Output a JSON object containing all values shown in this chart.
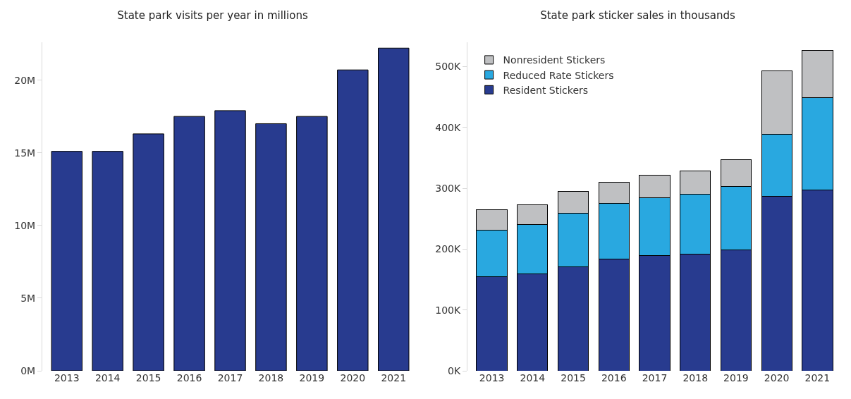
{
  "chart_data": [
    {
      "type": "bar",
      "title": "State park visits per year in millions",
      "categories": [
        "2013",
        "2014",
        "2015",
        "2016",
        "2017",
        "2018",
        "2019",
        "2020",
        "2021"
      ],
      "values": [
        15.1,
        15.1,
        16.3,
        17.5,
        17.9,
        17.0,
        17.5,
        20.7,
        22.2
      ],
      "color": "#283b8f",
      "ylim": [
        0,
        22.6
      ],
      "yticks": [
        {
          "value": 0,
          "label": "0M"
        },
        {
          "value": 5,
          "label": "5M"
        },
        {
          "value": 10,
          "label": "10M"
        },
        {
          "value": 15,
          "label": "15M"
        },
        {
          "value": 20,
          "label": "20M"
        }
      ],
      "grid": false,
      "legend": false
    },
    {
      "type": "bar",
      "title": "State park sticker sales in thousands",
      "categories": [
        "2013",
        "2014",
        "2015",
        "2016",
        "2017",
        "2018",
        "2019",
        "2020",
        "2021"
      ],
      "stacked": true,
      "series": [
        {
          "name": "Resident Stickers",
          "color": "#283b8f",
          "values": [
            155,
            159,
            171,
            184,
            189,
            192,
            199,
            287,
            297
          ]
        },
        {
          "name": "Reduced Rate Stickers",
          "color": "#29a8e0",
          "values": [
            76,
            81,
            88,
            91,
            95,
            98,
            104,
            102,
            152
          ]
        },
        {
          "name": "Nonresident Stickers",
          "color": "#bfc0c2",
          "values": [
            34,
            33,
            36,
            35,
            37,
            39,
            44,
            104,
            78
          ]
        }
      ],
      "ylim": [
        0,
        540
      ],
      "yticks": [
        {
          "value": 0,
          "label": "0K"
        },
        {
          "value": 100,
          "label": "100K"
        },
        {
          "value": 200,
          "label": "200K"
        },
        {
          "value": 300,
          "label": "300K"
        },
        {
          "value": 400,
          "label": "400K"
        },
        {
          "value": 500,
          "label": "500K"
        }
      ],
      "grid": false,
      "legend": "top left"
    }
  ]
}
